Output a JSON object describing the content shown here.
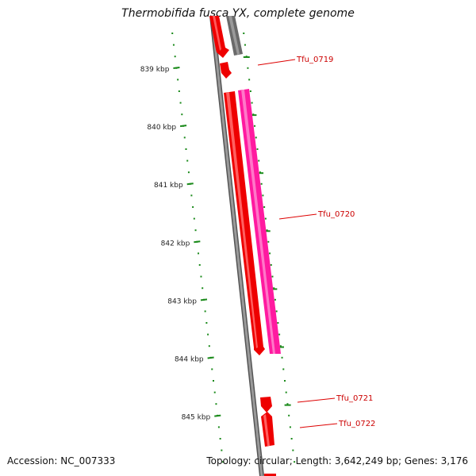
{
  "title": "Thermobifida fusca YX, complete genome",
  "footer": {
    "accession": "Accession: NC_007333",
    "summary": "Topology: circular; Length: 3,642,249 bp; Genes: 3,176"
  },
  "scale": {
    "unit": "kbp",
    "ticks": [
      "839 kbp",
      "840 kbp",
      "841 kbp",
      "842 kbp",
      "843 kbp",
      "844 kbp",
      "845 kbp"
    ]
  },
  "genes": [
    {
      "name": "Tfu_0719",
      "color": "#ee0000"
    },
    {
      "name": "Tfu_0720",
      "color": "#ee0000"
    },
    {
      "name": "Tfu_0721",
      "color": "#ee0000"
    },
    {
      "name": "Tfu_0722",
      "color": "#ee0000"
    }
  ],
  "colors": {
    "backbone": "#888888",
    "gene_red": "#ee0000",
    "gene_pink": "#ff1aa0",
    "gene_gray": "#707070",
    "scale_green": "#1a8a1a",
    "label_red": "#cc0000"
  }
}
